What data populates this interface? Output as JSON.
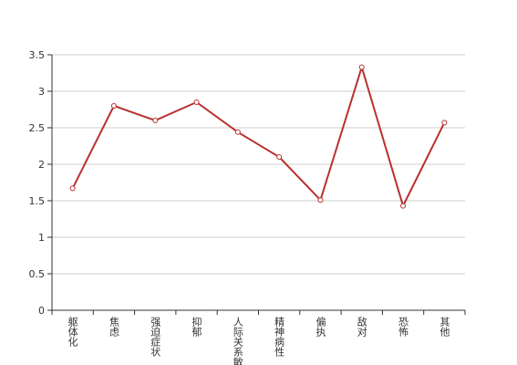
{
  "chart_data": {
    "type": "line",
    "categories": [
      "躯体化",
      "焦虑",
      "强迫症状",
      "抑郁",
      "人际关系敏感",
      "精神病性",
      "偏执",
      "敌对",
      "恐怖",
      "其他"
    ],
    "series": [
      {
        "color": "#b8312f",
        "values": [
          1.67,
          2.8,
          2.6,
          2.85,
          2.44,
          2.1,
          1.51,
          3.33,
          1.43,
          2.57
        ]
      }
    ],
    "ylim": [
      0,
      3.5
    ],
    "yticks": [
      0,
      0.5,
      1,
      1.5,
      2,
      2.5,
      3,
      3.5
    ],
    "grid": true
  }
}
